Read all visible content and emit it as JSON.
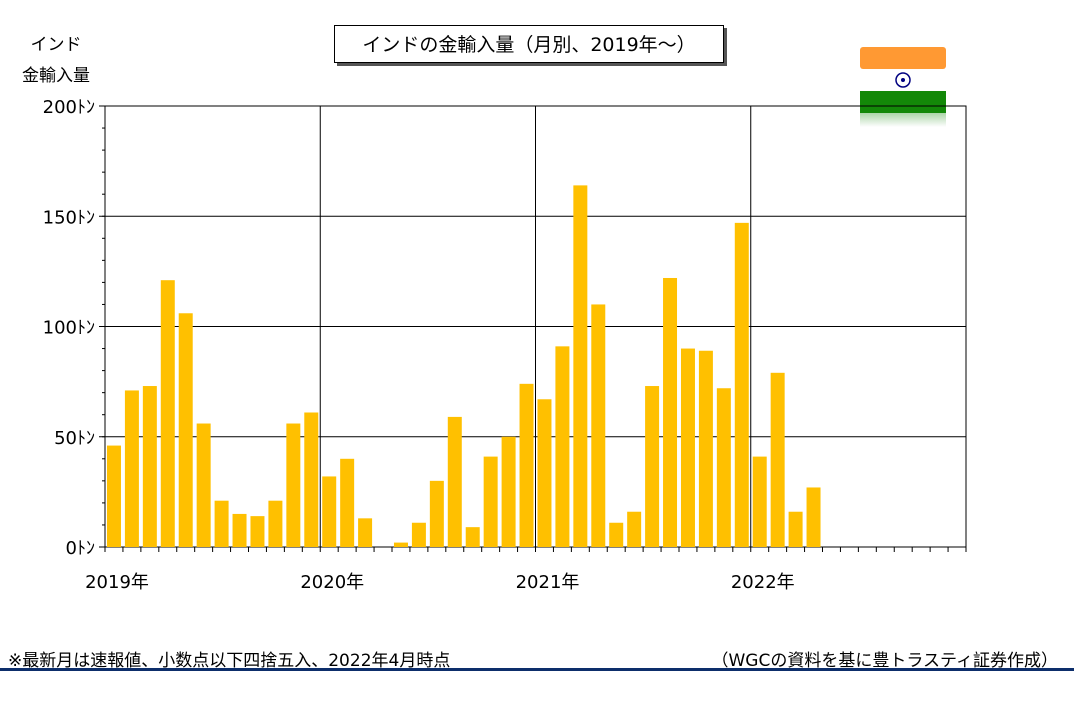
{
  "header": {
    "title": "インドの金輸入量（月別、2019年〜）",
    "ylabel_line1": "インド",
    "ylabel_line2": "金輸入量"
  },
  "footer": {
    "note": "※最新月は速報値、小数点以下四捨五入、2022年4月時点",
    "source": "（WGCの資料を基に豊トラスティ証券作成）"
  },
  "flag": {
    "name": "india-flag-icon",
    "saffron": "#FF9933",
    "white": "#FFFFFF",
    "green": "#138808",
    "chakra": "#000080"
  },
  "chart_data": {
    "type": "bar",
    "title": "インドの金輸入量（月別、2019年〜）",
    "ylabel": "インド 金輸入量",
    "ylim": [
      0,
      200
    ],
    "yticks": [
      0,
      50,
      100,
      150,
      200
    ],
    "ytick_labels": [
      "0ﾄﾝ",
      "50ﾄﾝ",
      "100ﾄﾝ",
      "150ﾄﾝ",
      "200ﾄﾝ"
    ],
    "year_labels": [
      "2019年",
      "2020年",
      "2021年",
      "2022年"
    ],
    "months_total": 48,
    "grid": true,
    "bar_color": "#FFC000",
    "values": [
      46,
      71,
      73,
      121,
      106,
      56,
      21,
      15,
      14,
      21,
      56,
      61,
      32,
      40,
      13,
      0,
      2,
      11,
      30,
      59,
      9,
      41,
      50,
      74,
      67,
      91,
      164,
      110,
      11,
      16,
      73,
      122,
      90,
      89,
      72,
      147,
      41,
      79,
      16,
      27
    ]
  }
}
